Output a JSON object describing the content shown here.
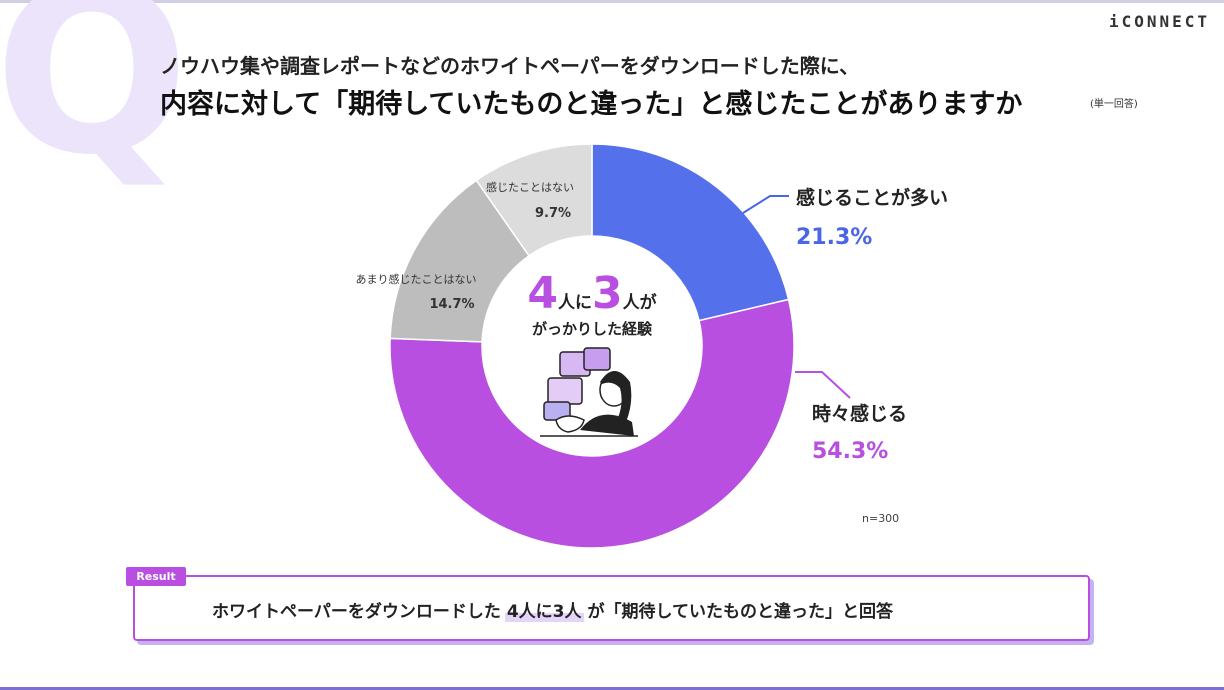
{
  "header": {
    "logo_text": "iCONNECT",
    "watermark_letter": "Q",
    "question_line1": "ノウハウ集や調査レポートなどのホワイトペーパーをダウンロードした際に、",
    "question_line2": "内容に対して「期待していたものと違った」と感じたことがありますか",
    "answer_type": "(単一回答)"
  },
  "center": {
    "num1": "4",
    "text1": "人に",
    "num2": "3",
    "text2": "人が",
    "line2": "がっかりした経験"
  },
  "sample_size": "n=300",
  "chart_data": {
    "type": "pie",
    "subtype": "donut",
    "categories": [
      "感じることが多い",
      "時々感じる",
      "あまり感じたことはない",
      "感じたことはない"
    ],
    "values": [
      21.3,
      54.3,
      14.7,
      9.7
    ],
    "value_labels": [
      "21.3%",
      "54.3%",
      "14.7%",
      "9.7%"
    ],
    "colors": [
      "#5470ea",
      "#b84fe0",
      "#bdbdbd",
      "#dcdcdc"
    ],
    "label_colors": [
      "#4a66e6",
      "#b84fe0",
      "#333333",
      "#333333"
    ],
    "start_angle_deg": 0,
    "direction": "clockwise"
  },
  "result": {
    "tag": "Result",
    "text_before": "ホワイトペーパーをダウンロードした",
    "highlight": "4人に3人",
    "text_after": "が「期待していたものと違った」と回答"
  }
}
